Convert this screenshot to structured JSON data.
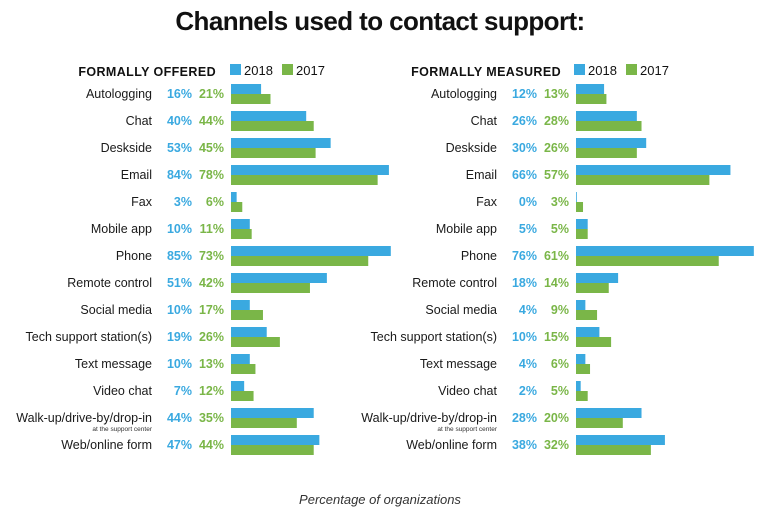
{
  "title": "Channels used to contact support:",
  "footer": "Percentage of organizations",
  "colors": {
    "y2018": "#3aa9e0",
    "y2017": "#7ab648"
  },
  "chart_data": [
    {
      "type": "bar",
      "orientation": "horizontal",
      "title": "FORMALLY OFFERED",
      "legend": [
        "2018",
        "2017"
      ],
      "xlim": [
        0,
        85
      ],
      "categories": [
        "Autologging",
        "Chat",
        "Deskside",
        "Email",
        "Fax",
        "Mobile app",
        "Phone",
        "Remote control",
        "Social media",
        "Tech support station(s)",
        "Text message",
        "Video chat",
        "Walk-up/drive-by/drop-in",
        "Web/online form"
      ],
      "sublabels": {
        "Walk-up/drive-by/drop-in": "at the support center"
      },
      "series": [
        {
          "name": "2018",
          "values": [
            16,
            40,
            53,
            84,
            3,
            10,
            85,
            51,
            10,
            19,
            10,
            7,
            44,
            47
          ]
        },
        {
          "name": "2017",
          "values": [
            21,
            44,
            45,
            78,
            6,
            11,
            73,
            42,
            17,
            26,
            13,
            12,
            35,
            44
          ]
        }
      ]
    },
    {
      "type": "bar",
      "orientation": "horizontal",
      "title": "FORMALLY MEASURED",
      "legend": [
        "2018",
        "2017"
      ],
      "xlim": [
        0,
        76
      ],
      "categories": [
        "Autologging",
        "Chat",
        "Deskside",
        "Email",
        "Fax",
        "Mobile app",
        "Phone",
        "Remote control",
        "Social media",
        "Tech support station(s)",
        "Text message",
        "Video chat",
        "Walk-up/drive-by/drop-in",
        "Web/online form"
      ],
      "sublabels": {
        "Walk-up/drive-by/drop-in": "at the support center"
      },
      "series": [
        {
          "name": "2018",
          "values": [
            12,
            26,
            30,
            66,
            0,
            5,
            76,
            18,
            4,
            10,
            4,
            2,
            28,
            38
          ]
        },
        {
          "name": "2017",
          "values": [
            13,
            28,
            26,
            57,
            3,
            5,
            61,
            14,
            9,
            15,
            6,
            5,
            20,
            32
          ]
        }
      ]
    }
  ]
}
